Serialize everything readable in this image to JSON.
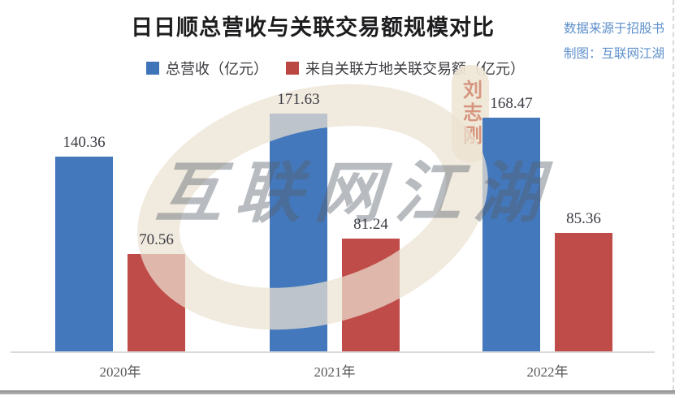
{
  "header": {
    "title": "日日顺总营收与关联交易额规模对比",
    "source_line1": "数据来源于招股书",
    "source_line2": "制图：互联网江湖"
  },
  "legend": [
    {
      "label": "总营收（亿元）",
      "color": "#3f74b8"
    },
    {
      "label": "来自关联方地关联交易额（亿元）",
      "color": "#bb4743"
    }
  ],
  "watermark": {
    "text": "互联网江湖",
    "seal_text": "刘志刚"
  },
  "chart_data": {
    "type": "bar",
    "title": "日日顺总营收与关联交易额规模对比",
    "categories": [
      "2020年",
      "2021年",
      "2022年"
    ],
    "series": [
      {
        "name": "总营收（亿元）",
        "color": "#4478bc",
        "values": [
          140.36,
          171.63,
          168.47
        ]
      },
      {
        "name": "来自关联方地关联交易额（亿元）",
        "color": "#bf4c49",
        "values": [
          70.56,
          81.24,
          85.36
        ]
      }
    ],
    "value_labels": true,
    "xlabel": "",
    "ylabel": "",
    "ylim": [
      0,
      180
    ],
    "grid": false,
    "legend_position": "top",
    "y_axis_shown": false
  }
}
